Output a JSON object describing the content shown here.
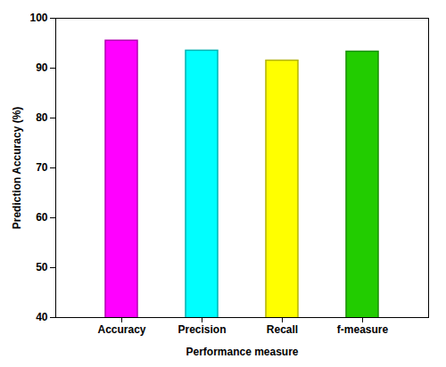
{
  "chart_data": {
    "type": "bar",
    "categories": [
      "Accuracy",
      "Precision",
      "Recall",
      "f-measure"
    ],
    "values": [
      95.5,
      93.5,
      91.5,
      93.3
    ],
    "colors": [
      "#FF00FF",
      "#00FFFF",
      "#FFFF00",
      "#22CC00"
    ],
    "xlabel": "Performance measure",
    "ylabel": "Prediction Accuracy (%)",
    "ylim": [
      40,
      100
    ],
    "yticks": [
      40,
      50,
      60,
      70,
      80,
      90,
      100
    ]
  }
}
